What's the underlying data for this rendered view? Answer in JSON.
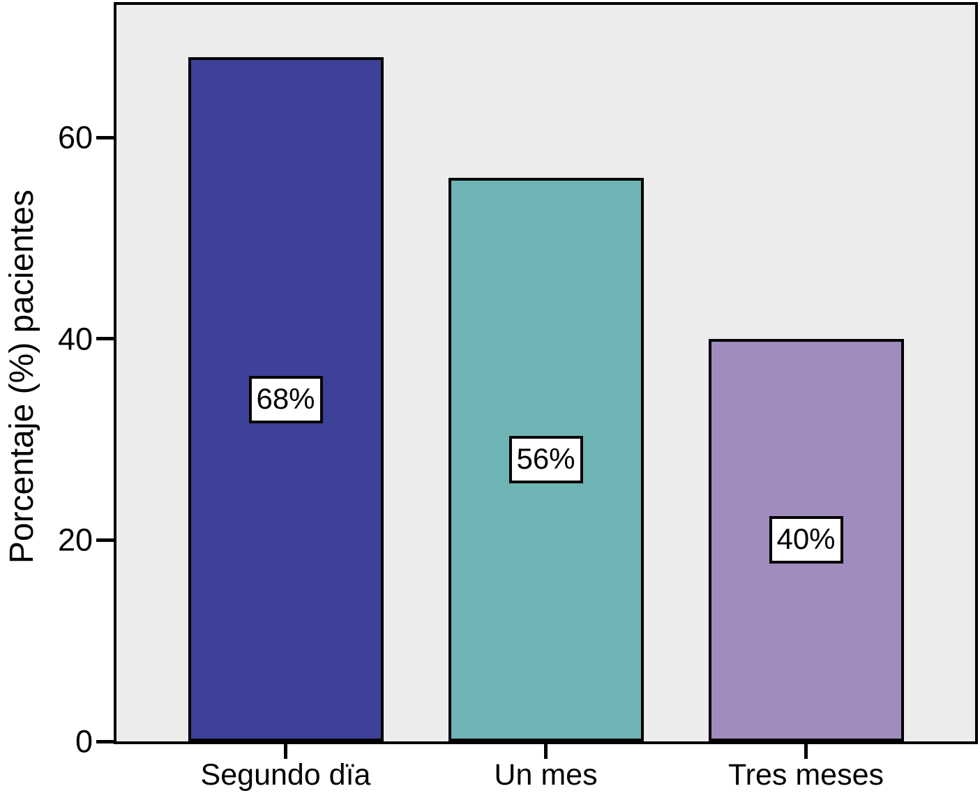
{
  "chart_data": {
    "type": "bar",
    "title": "",
    "xlabel": "",
    "ylabel": "Porcentaje (%) pacientes",
    "categories": [
      "Segundo dïa",
      "Un mes",
      "Tres meses"
    ],
    "values": [
      68,
      56,
      40
    ],
    "value_labels": [
      "68%",
      "56%",
      "40%"
    ],
    "bar_colors": [
      "#3d4198",
      "#6fb4b5",
      "#a08cbe"
    ],
    "yticks": [
      0,
      20,
      40,
      60
    ],
    "ylim": [
      0,
      73.2
    ],
    "grid": false,
    "legend": "none",
    "plot_background": "#ececec",
    "page_background": "#ffffff",
    "axis_color": "#000000",
    "value_box_background": "#ffffff",
    "value_box_border": "#000000"
  }
}
